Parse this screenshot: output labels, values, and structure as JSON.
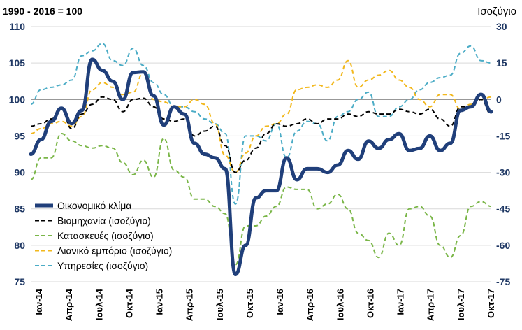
{
  "chart_data": {
    "type": "line",
    "left_axis_title": "1990 - 2016 = 100",
    "right_axis_title": "Ισοζύγιο",
    "ylim_left": [
      75,
      110
    ],
    "yticks_left": [
      "110",
      "105",
      "100",
      "95",
      "90",
      "85",
      "80",
      "75"
    ],
    "ylim_right": [
      -75,
      30
    ],
    "yticks_right": [
      "30",
      "15",
      "0",
      "-15",
      "-30",
      "-45",
      "-60",
      "-75"
    ],
    "x_tick_labels": [
      "Ιαν-14",
      "Απρ-14",
      "Ιουλ-14",
      "Οκτ-14",
      "Ιαν-15",
      "Απρ-15",
      "Ιουλ-15",
      "Οκτ-15",
      "Ιαν-16",
      "Απρ-16",
      "Ιουλ-16",
      "Οκτ-16",
      "Ιαν-17",
      "Απρ-17",
      "Ιουλ-17",
      "Οκτ-17"
    ],
    "grid": "horizontal",
    "legend_position": "bottom-left",
    "series": [
      {
        "name": "Οικονομικό κλίμα",
        "axis": "left",
        "color": "#203f7a",
        "dash": "solid",
        "values": [
          92.5,
          94.5,
          97,
          98.8,
          96.7,
          98.5,
          105.5,
          104,
          102.5,
          100,
          103.7,
          103.8,
          100.5,
          96.5,
          99,
          98,
          94,
          92.5,
          92,
          90.5,
          76,
          80,
          86.5,
          87.5,
          87.5,
          92,
          89,
          90.5,
          90.5,
          90,
          91,
          93,
          91.8,
          94.3,
          93.3,
          94.5,
          95.3,
          93,
          93.3,
          95,
          93,
          94,
          98.5,
          99,
          100.7,
          98.3
        ]
      },
      {
        "name": "Βιομηχανία (ισοζύγιο)",
        "axis": "right",
        "color": "#000000",
        "dash": "dashed",
        "values": [
          -11,
          -10,
          -8,
          -4,
          -12,
          -6,
          -2,
          1,
          0,
          -5,
          0,
          0.5,
          -3,
          -8,
          -9,
          -8,
          -15,
          -13,
          -11,
          -19,
          -30,
          -25,
          -20,
          -14,
          -10,
          -11,
          -10,
          -8,
          -10,
          -8,
          -8,
          -6,
          -7,
          -5,
          -6,
          -6,
          -4,
          -5,
          -6,
          -4,
          -8,
          -11,
          -3,
          -3,
          0,
          -6
        ]
      },
      {
        "name": "Κατασκευές (ισοζύγιο)",
        "axis": "right",
        "color": "#7ab648",
        "dash": "dashed",
        "values": [
          -33,
          -24,
          -24,
          -14,
          -17,
          -19,
          -20,
          -19,
          -20,
          -26,
          -31,
          -25,
          -32,
          -16,
          -29,
          -32,
          -41,
          -41,
          -44,
          -47,
          -68,
          -52,
          -52,
          -48,
          -44,
          -36,
          -37,
          -37,
          -45,
          -43,
          -39,
          -45,
          -55,
          -58,
          -65,
          -55,
          -60,
          -45,
          -44,
          -48,
          -60,
          -65,
          -56,
          -44,
          -42,
          -44
        ]
      },
      {
        "name": "Λιανικό εμπόριο (ισοζύγιο)",
        "axis": "right",
        "color": "#f2b81d",
        "dash": "dashed",
        "values": [
          -14,
          -12,
          -10,
          -9,
          -11,
          -7,
          4,
          7,
          5,
          2,
          3,
          11,
          0,
          -1,
          -3,
          -3,
          0,
          -2,
          -10,
          -23,
          -30,
          -22,
          -15,
          -11,
          -10,
          -6,
          4,
          5,
          6,
          5,
          8,
          16,
          5,
          8,
          10,
          12,
          8,
          5,
          0,
          -3,
          2,
          2,
          -4,
          -2,
          0,
          1
        ]
      },
      {
        "name": "Υπηρεσίες (ισοζύγιο)",
        "axis": "right",
        "color": "#4bacc6",
        "dash": "dashed",
        "values": [
          -2,
          4,
          5,
          6,
          8,
          18,
          20,
          23,
          16,
          14,
          21,
          14,
          7,
          2,
          -3,
          -3,
          -5,
          -8,
          -10,
          -14,
          -43,
          -15,
          -15,
          -17,
          -10,
          -24,
          -13,
          -9,
          -10,
          -17,
          -7,
          -5,
          0,
          3,
          -7,
          -7,
          -3,
          0,
          4,
          7,
          9,
          10,
          19,
          22,
          16,
          15
        ]
      }
    ]
  }
}
